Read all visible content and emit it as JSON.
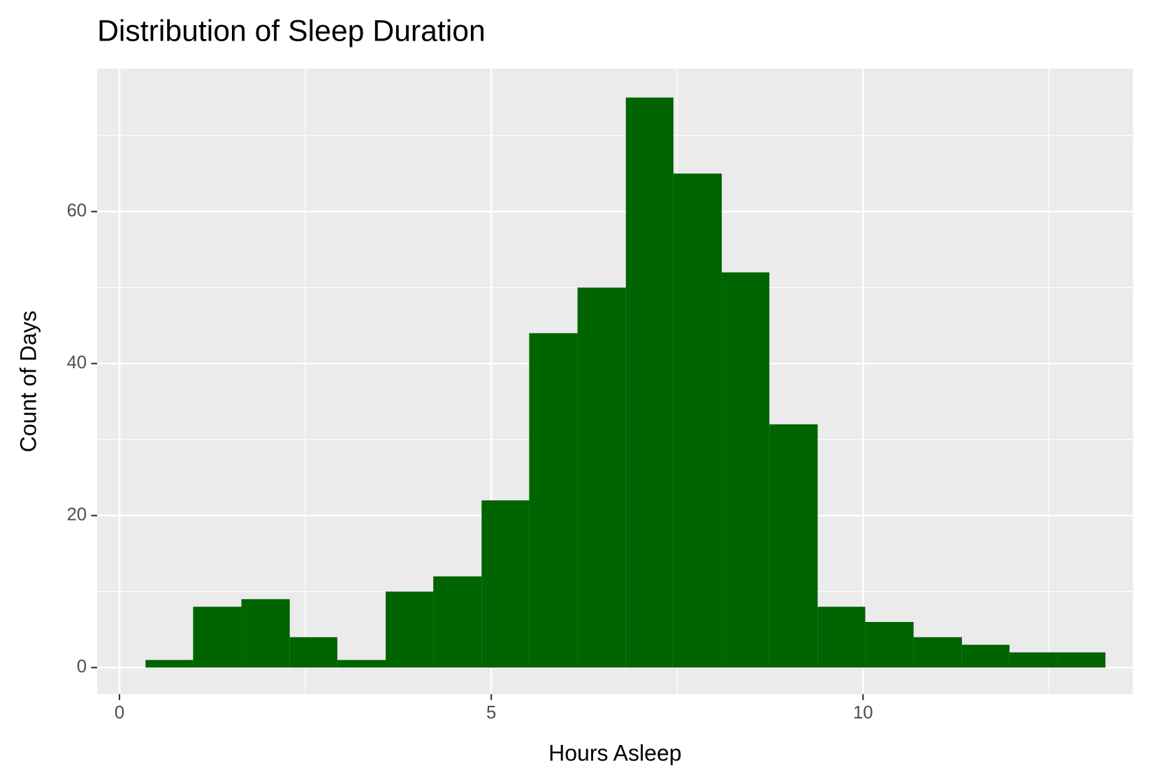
{
  "chart_data": {
    "type": "histogram",
    "title": "Distribution of Sleep Duration",
    "x_label": "Hours Asleep",
    "y_label": "Count of Days",
    "bins": [
      0.35,
      0.99,
      1.64,
      2.29,
      2.93,
      3.58,
      4.22,
      4.87,
      5.51,
      6.16,
      6.81,
      7.45,
      8.1,
      8.74,
      9.39,
      10.03,
      10.68,
      11.33,
      11.97,
      12.62,
      13.26
    ],
    "values": [
      1,
      8,
      9,
      4,
      1,
      10,
      12,
      22,
      44,
      50,
      75,
      65,
      52,
      32,
      8,
      6,
      4,
      3,
      2,
      2
    ],
    "color": "#006400",
    "xlim": [
      -0.3,
      13.63
    ],
    "xticks": [
      0,
      5,
      10
    ],
    "ylim": [
      -3.5,
      78.8
    ],
    "yticks": [
      0,
      20,
      40,
      60
    ],
    "grid": true
  }
}
